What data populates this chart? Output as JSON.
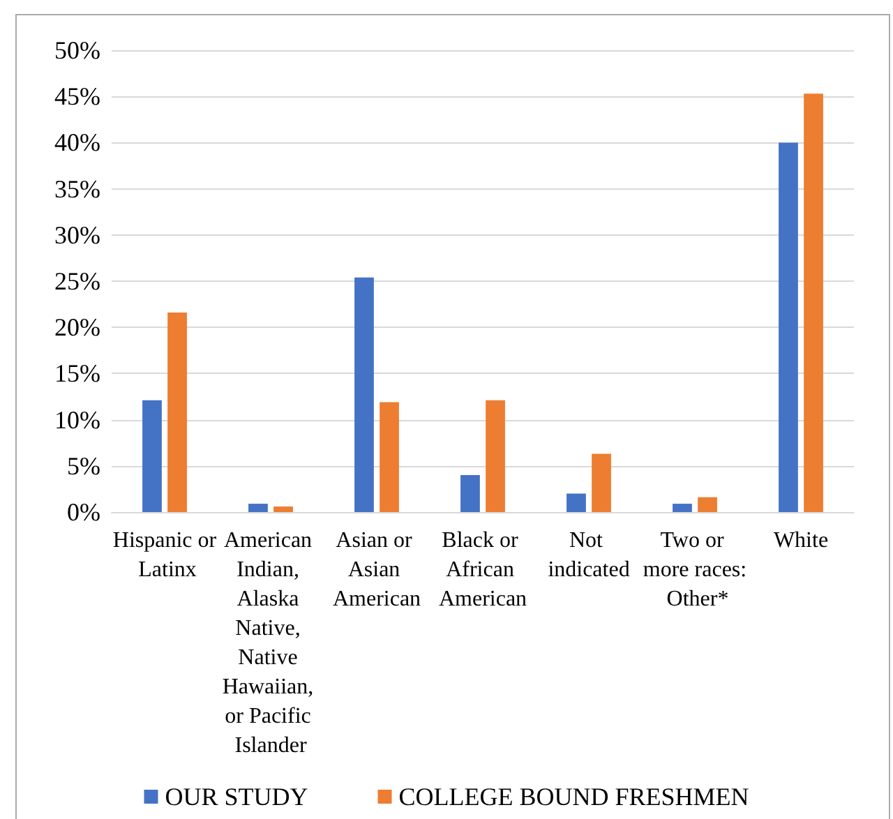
{
  "chart_data": {
    "type": "bar",
    "categories": [
      "Hispanic or Latinx",
      "American Indian, Alaska Native, Native Hawaiian, or Pacific Islander",
      "Asian or Asian American",
      "Black or African American",
      "Not indicated",
      "Two or more races: Other*",
      "White"
    ],
    "series": [
      {
        "name": "OUR STUDY",
        "color": "#4472c4",
        "values": [
          12.1,
          0.9,
          25.4,
          4.0,
          2.0,
          0.9,
          40.0
        ]
      },
      {
        "name": "COLLEGE BOUND FRESHMEN",
        "color": "#ed7d31",
        "values": [
          21.6,
          0.6,
          11.9,
          12.1,
          6.3,
          1.6,
          45.3
        ]
      }
    ],
    "ylim": [
      0,
      50
    ],
    "yticks": [
      {
        "value": 0,
        "label": "0%"
      },
      {
        "value": 5,
        "label": "5%"
      },
      {
        "value": 10,
        "label": "10%"
      },
      {
        "value": 15,
        "label": "15%"
      },
      {
        "value": 20,
        "label": "20%"
      },
      {
        "value": 25,
        "label": "25%"
      },
      {
        "value": 30,
        "label": "30%"
      },
      {
        "value": 35,
        "label": "35%"
      },
      {
        "value": 40,
        "label": "40%"
      },
      {
        "value": 45,
        "label": "45%"
      },
      {
        "value": 50,
        "label": "50%"
      }
    ],
    "grid": "y",
    "legend": "bottom"
  }
}
